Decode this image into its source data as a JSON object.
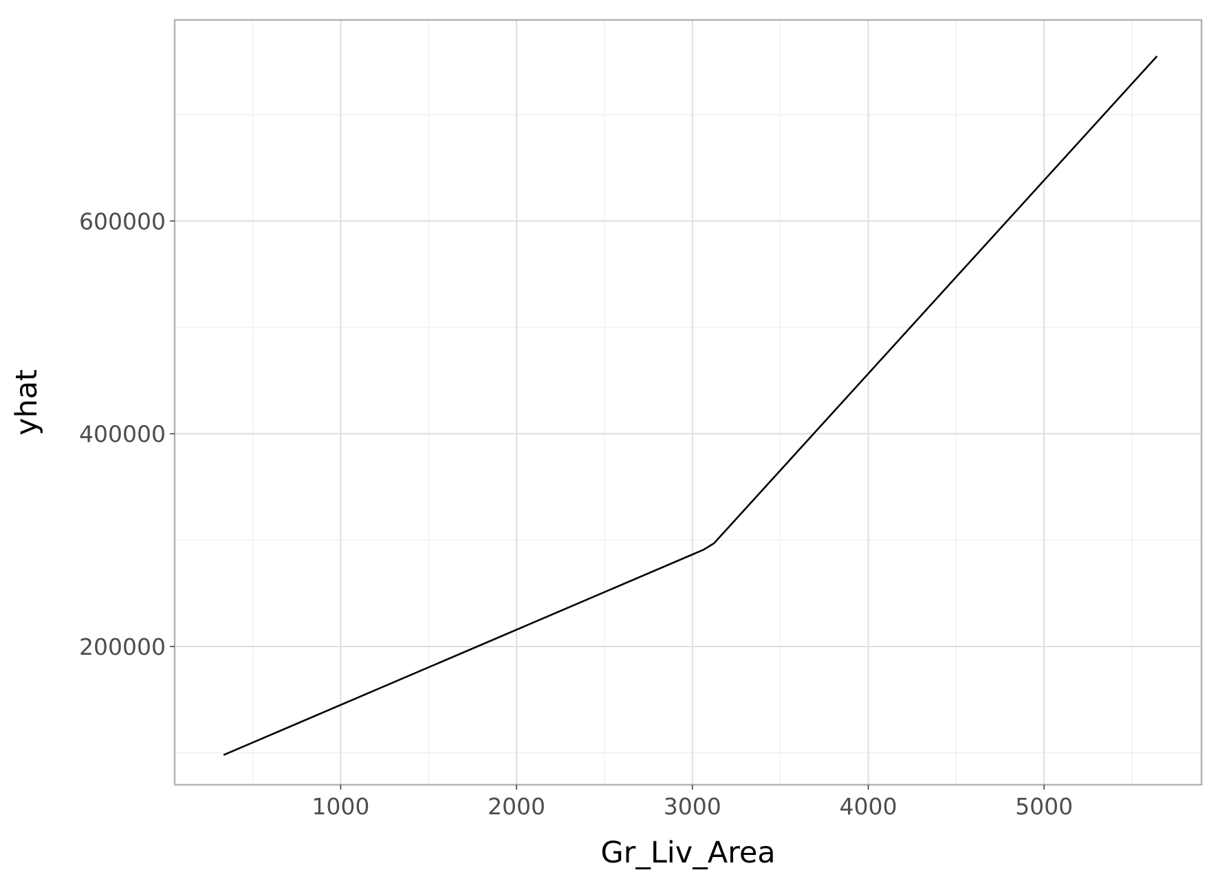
{
  "chart_data": {
    "type": "line",
    "title": "",
    "xlabel": "Gr_Liv_Area",
    "ylabel": "yhat",
    "xlim": [
      56,
      5895
    ],
    "ylim": [
      70000,
      789000
    ],
    "x_ticks": [
      1000,
      2000,
      3000,
      4000,
      5000
    ],
    "x_tick_labels": [
      "1000",
      "2000",
      "3000",
      "4000",
      "5000"
    ],
    "x_minor_ticks": [
      500,
      1500,
      2500,
      3500,
      4500,
      5500
    ],
    "y_ticks": [
      200000,
      400000,
      600000
    ],
    "y_tick_labels": [
      "200000",
      "400000",
      "600000"
    ],
    "y_minor_ticks": [
      100000,
      300000,
      500000,
      700000
    ],
    "grid": true,
    "legend": "none",
    "series": [
      {
        "x": [
          334,
          3064,
          3123,
          5642
        ],
        "y": [
          98000,
          291000,
          297000,
          755000
        ],
        "color": "#000000"
      }
    ],
    "colors": {
      "panel_border": "#b3b3b3",
      "major_grid": "#dedede",
      "minor_grid": "#eeeeee",
      "tick_text": "#4d4d4d",
      "tick_mark": "#333333",
      "axis_title": "#000000"
    }
  }
}
